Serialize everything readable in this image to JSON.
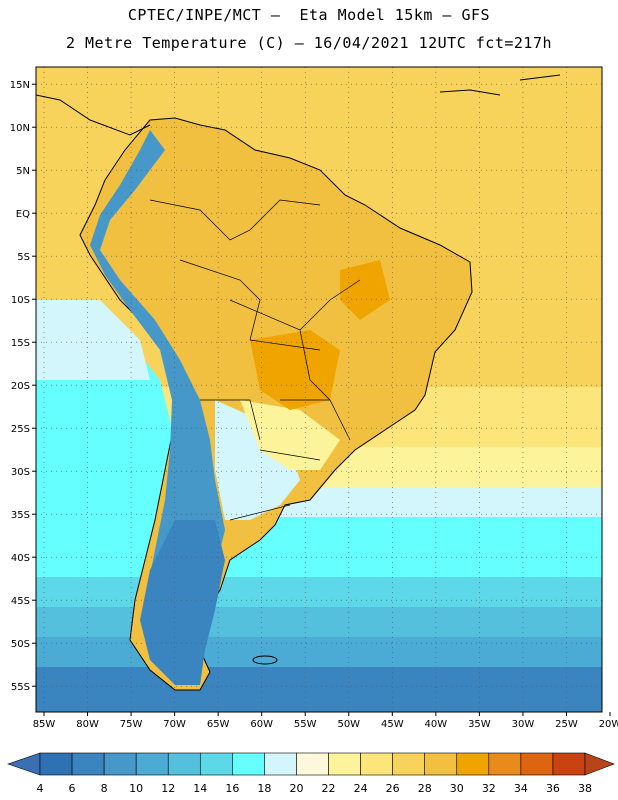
{
  "header": {
    "line1": "CPTEC/INPE/MCT –  Eta Model 15km – GFS",
    "line2": "2 Metre Temperature (C) – 16/04/2021 12UTC fct=217h"
  },
  "map": {
    "lat_labels": [
      "15N",
      "10N",
      "5N",
      "EQ",
      "5S",
      "10S",
      "15S",
      "20S",
      "25S",
      "30S",
      "35S",
      "40S",
      "45S",
      "50S",
      "55S"
    ],
    "lon_labels": [
      "85W",
      "80W",
      "75W",
      "70W",
      "65W",
      "60W",
      "55W",
      "50W",
      "45W",
      "40W",
      "35W",
      "30W",
      "25W",
      "20W"
    ],
    "lat_range": [
      -58,
      17
    ],
    "lon_range": [
      -85,
      -20
    ],
    "grid": "dotted",
    "land_outline_color": "#000000"
  },
  "colorbar": {
    "labels": [
      "4",
      "6",
      "8",
      "10",
      "12",
      "14",
      "16",
      "18",
      "20",
      "22",
      "24",
      "26",
      "28",
      "30",
      "32",
      "34",
      "36",
      "38"
    ],
    "colors": [
      "#2f72b4",
      "#3a85c0",
      "#4598c8",
      "#4cabd4",
      "#55c0dd",
      "#5dd8e8",
      "#66ffff",
      "#d2f6fc",
      "#fdf8dc",
      "#fdf39a",
      "#fce57a",
      "#f8d35c",
      "#f1c040",
      "#f0a400",
      "#e88a1c",
      "#dd6410",
      "#c84212"
    ],
    "low_color": "#3a6fb4",
    "high_color": "#b8441a"
  }
}
